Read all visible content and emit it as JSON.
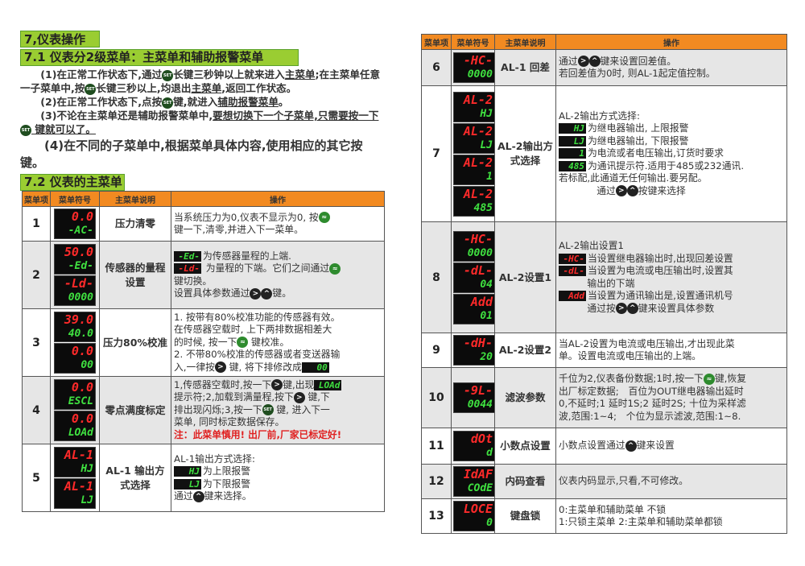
{
  "headings": {
    "h1": "7,仪表操作",
    "h2": "7.1 仪表分2级菜单：主菜单和辅助报警菜单",
    "h3": "7.2 仪表的主菜单"
  },
  "colors": {
    "heading_bg": "#9acd32",
    "table_header_bg": "#f28a21",
    "led_red": "#ff2a2a",
    "led_green": "#3fe040",
    "warning": "#e02020"
  },
  "icons": {
    "set": "SET",
    "right": ">",
    "up": "^",
    "scroll": "≈"
  },
  "paragraphs": [
    {
      "big": false,
      "parts": [
        "(1)在正常工作状态下,通过",
        {
          "i": "set"
        },
        "长键三秒钟以上就来进入",
        {
          "u": "主菜单"
        },
        ";在主菜单任意一子菜单中,按",
        {
          "i": "set"
        },
        "长键三秒以上,均退出",
        {
          "u": "主菜单"
        },
        ",返回工作状态。"
      ]
    },
    {
      "big": false,
      "parts": [
        "(2)在正常工作状态下,点按",
        {
          "i": "set"
        },
        "键,就进入",
        {
          "u": "辅助报警菜单"
        },
        "。"
      ]
    },
    {
      "big": false,
      "parts": [
        "(3)不论在主菜单还是辅助报警菜单中,",
        {
          "u": "要想切换下一个子菜单,只需要按一下"
        },
        {
          "i": "set"
        },
        {
          "u": " 键就可以了。"
        }
      ]
    },
    {
      "big": true,
      "parts": [
        "(4)在不同的子菜单中,根据菜单具体内容,使用相应的其它按键。"
      ]
    }
  ],
  "table_headers": [
    "菜单项",
    "菜单符号",
    "主菜单说明",
    "操作"
  ],
  "left_rows": [
    {
      "no": "1",
      "desc": "压力清零",
      "displays": [
        {
          "top": "0.0",
          "bottom": "-AC-"
        }
      ],
      "op": [
        [
          "当系统压力为0,仪表不显示为0, 按",
          {
            "i": "scroll"
          }
        ],
        [
          "键一下,清零,并进入下一菜单。"
        ]
      ]
    },
    {
      "no": "2",
      "desc": "传感器的量程设置",
      "displays": [
        {
          "top": "50.0",
          "bottom": "-Ed-"
        },
        {
          "top": "-Ld-",
          "bottom": "0000"
        }
      ],
      "op": [
        [
          {
            "led": "-Ed-",
            "c": "g"
          },
          "为传感器量程的上端."
        ],
        [
          {
            "led": "-Ld-",
            "c": "r"
          },
          " 为量程的下端。它们之间通过",
          {
            "i": "scroll"
          }
        ],
        [
          "键切换。"
        ],
        [
          " 设置具体参数通过",
          {
            "i": "right"
          },
          {
            "i": "up"
          },
          "键。"
        ]
      ]
    },
    {
      "no": "3",
      "desc": "压力80%校准",
      "displays": [
        {
          "top": "39.0",
          "bottom": "40.0"
        },
        {
          "top": "0.0",
          "bottom": "00"
        }
      ],
      "op": [
        [
          "1. 按带有80%校准功能的传感器有效。"
        ],
        [
          "在传感器空载时, 上下两排数据相差大"
        ],
        [
          "的时候, 按一下",
          {
            "i": "scroll"
          },
          " 键校准。"
        ],
        [
          "2. 不带80%校准的传感器或者变送器输"
        ],
        [
          "入,一律按",
          {
            "i": "right"
          },
          " 键, 将下排修改成",
          {
            "led": "00",
            "c": "g"
          }
        ]
      ]
    },
    {
      "no": "4",
      "desc": "零点满度标定",
      "displays": [
        {
          "top": "0.0",
          "bottom": "ESCL"
        },
        {
          "top": "0.0",
          "bottom": "LOAd"
        }
      ],
      "op": [
        [
          "1,传感器空载时,按一下",
          {
            "i": "right"
          },
          "键,出现",
          {
            "led": "LOAd",
            "c": "g"
          }
        ],
        [
          "提示符;2,加载到满量程,按下",
          {
            "i": "right"
          },
          " 键,下"
        ],
        [
          "排出现闪烁;3,按一下",
          {
            "i": "set"
          },
          " 键, 进入下一"
        ],
        [
          "菜单, 同时标定数据保存。"
        ],
        [
          {
            "red": "注：此菜单慎用! 出厂前,厂家已标定好!"
          }
        ]
      ]
    },
    {
      "no": "5",
      "desc": "AL-1 输出方式选择",
      "displays": [
        {
          "top": "AL-1",
          "bottom": "HJ"
        },
        {
          "top": "AL-1",
          "bottom": "LJ"
        }
      ],
      "op": [
        [
          "AL-1输出方式选择:"
        ],
        [
          {
            "led": "HJ",
            "c": "g"
          },
          "为上限报警"
        ],
        [
          {
            "led": "LJ",
            "c": "g"
          },
          "为下限报警"
        ],
        [
          " "
        ],
        [
          "通过",
          {
            "i": "up"
          },
          "键来选择。"
        ]
      ]
    }
  ],
  "right_rows": [
    {
      "no": "6",
      "desc": "AL-1 回差",
      "displays": [
        {
          "top": "-HC-",
          "bottom": "0000"
        }
      ],
      "op": [
        [
          "通过",
          {
            "i": "right"
          },
          {
            "i": "up"
          },
          "键来设置回差值。"
        ],
        [
          " 若回差值为0时, 则AL-1起定值控制。"
        ]
      ]
    },
    {
      "no": "7",
      "desc": "AL-2输出方式选择",
      "displays": [
        {
          "top": "AL-2",
          "bottom": "HJ"
        },
        {
          "top": "AL-2",
          "bottom": "LJ"
        },
        {
          "top": "AL-2",
          "bottom": "1"
        },
        {
          "top": "AL-2",
          "bottom": "485"
        }
      ],
      "op": [
        [
          "AL-2输出方式选择:"
        ],
        [
          {
            "led": "HJ",
            "c": "g"
          },
          "为继电器输出, 上限报警"
        ],
        [
          {
            "led": "LJ",
            "c": "g"
          },
          "为继电器输出, 下限报警"
        ],
        [
          {
            "led": "1",
            "c": "g"
          },
          "为电流或者电压输出,订货时要求"
        ],
        [
          {
            "led": "485",
            "c": "g"
          },
          "为通讯提示符.适用于485或232通讯."
        ],
        [
          "若标配,此通道无任何输出.要另配。"
        ],
        [
          "　　　　通过",
          {
            "i": "right"
          },
          {
            "i": "up"
          },
          "按键来选择"
        ]
      ]
    },
    {
      "no": "8",
      "desc": "AL-2设置1",
      "displays": [
        {
          "top": "-HC-",
          "bottom": "0000"
        },
        {
          "top": "-dL-",
          "bottom": "04"
        },
        {
          "top": "Add",
          "bottom": "01"
        }
      ],
      "op": [
        [
          "AL-2输出设置1"
        ],
        [
          {
            "led": "-HC-",
            "c": "r"
          },
          "当设置继电器输出时,出现回差设置"
        ],
        [
          {
            "led": "-dL-",
            "c": "r"
          },
          "当设置为电流或电压输出时,设置其"
        ],
        [
          "　　　输出的下端"
        ],
        [
          {
            "led": "Add",
            "c": "r"
          },
          "当设置为通讯输出是,设置通讯机号"
        ],
        [
          "　　　通过按",
          {
            "i": "right"
          },
          {
            "i": "up"
          },
          "键来设置具体参数"
        ]
      ]
    },
    {
      "no": "9",
      "desc": "AL-2设置2",
      "displays": [
        {
          "top": "-dH-",
          "bottom": "20"
        }
      ],
      "op": [
        [
          "当AL-2设置为电流或电压输出,才出现此菜"
        ],
        [
          "单。设置电流或电压输出的上端。"
        ]
      ]
    },
    {
      "no": "10",
      "desc": "滤波参数",
      "displays": [
        {
          "top": "-9L-",
          "bottom": "0044"
        }
      ],
      "op": [
        [
          "千位为2,仪表备份数据;1时,按一下",
          {
            "i": "scroll"
          },
          "键,恢复"
        ],
        [
          "出厂标定数据;　百位为OUT继电器输出延时"
        ],
        [
          "0,不延时;1 延时1S;2 延时2S; 十位为采样滤"
        ],
        [
          "波,范围:1~4;　个位为显示滤波,范围:1~8."
        ]
      ]
    },
    {
      "no": "11",
      "desc": "小数点设置",
      "displays": [
        {
          "top": "dOt",
          "bottom": "d"
        }
      ],
      "op": [
        [
          "小数点设置通过",
          {
            "i": "up"
          },
          "键来设置"
        ]
      ]
    },
    {
      "no": "12",
      "desc": "内码查看",
      "displays": [
        {
          "top": "IdAF",
          "bottom": "COdE"
        }
      ],
      "op": [
        [
          "仪表内码显示,只看,不可修改。"
        ]
      ]
    },
    {
      "no": "13",
      "desc": "键盘锁",
      "displays": [
        {
          "top": "LOCE",
          "bottom": "0"
        }
      ],
      "op": [
        [
          "0:主菜单和辅助菜单 不锁"
        ],
        [
          "1:只锁主菜单 2:主菜单和辅助菜单都锁"
        ]
      ]
    }
  ]
}
